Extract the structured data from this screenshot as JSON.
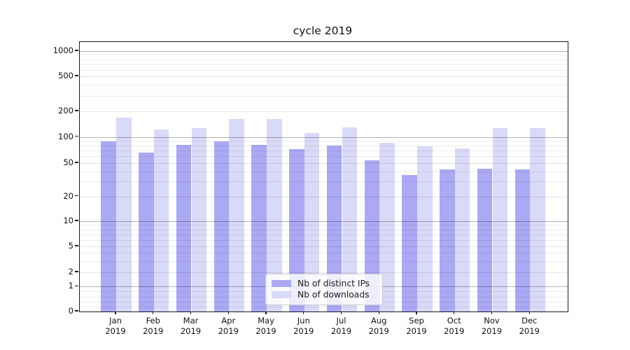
{
  "chart_data": {
    "type": "bar",
    "title": "cycle 2019",
    "xlabel": "",
    "ylabel": "",
    "yscale": "symlog",
    "grid": true,
    "ylim": [
      0,
      1260
    ],
    "x_months": [
      "Jan",
      "Feb",
      "Mar",
      "Apr",
      "May",
      "Jun",
      "Jul",
      "Aug",
      "Sep",
      "Oct",
      "Nov",
      "Dec"
    ],
    "x_year": "2019",
    "categories": [
      "Jan 2019",
      "Feb 2019",
      "Mar 2019",
      "Apr 2019",
      "May 2019",
      "Jun 2019",
      "Jul 2019",
      "Aug 2019",
      "Sep 2019",
      "Oct 2019",
      "Nov 2019",
      "Dec 2019"
    ],
    "series": [
      {
        "name": "Nb of distinct IPs",
        "color": "#a9a9f4",
        "values": [
          88,
          66,
          81,
          88,
          81,
          72,
          79,
          54,
          36,
          42,
          43,
          42
        ]
      },
      {
        "name": "Nb of downloads",
        "color": "#d9d9f8",
        "values": [
          170,
          121,
          127,
          161,
          161,
          110,
          130,
          86,
          78,
          74,
          127,
          126
        ]
      }
    ],
    "y_axis": {
      "tick_labels": [
        "0",
        "1",
        "2",
        "5",
        "10",
        "20",
        "50",
        "100",
        "200",
        "500",
        "1000"
      ],
      "tick_values": [
        0,
        1,
        2,
        5,
        10,
        20,
        50,
        100,
        200,
        500,
        1000
      ]
    },
    "legend": {
      "position": "lower center"
    }
  }
}
